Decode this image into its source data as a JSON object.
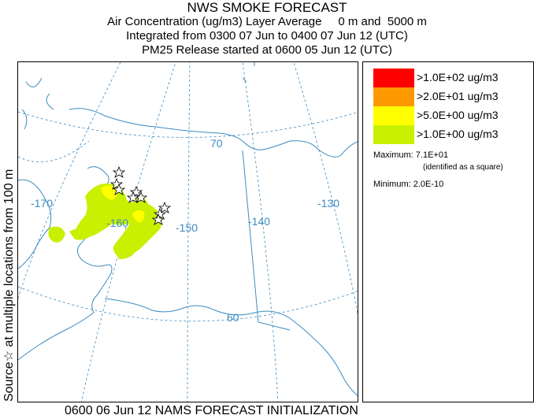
{
  "titles": {
    "main": "NWS SMOKE FORECAST",
    "line1": "Air Concentration (ug/m3) Layer Average     0 m and  5000 m",
    "line2": "Integrated from 0300 07 Jun to 0400 07 Jun 12 (UTC)",
    "line3": "PM25 Release started at 0600 05 Jun 12 (UTC)"
  },
  "side_label": "Source☆ at multiple locations from 100 m",
  "footer": "0600 06 Jun 12 NAMS FORECAST INITIALIZATION",
  "map": {
    "graticule_labels": {
      "lon_170": "-170",
      "lon_160": "-160",
      "lon_150": "-150",
      "lon_140": "-140",
      "lon_130": "-130",
      "lat_70": "70",
      "lat_60": "60"
    },
    "colors": {
      "coast": "#3c8cc0",
      "graticule": "#3c8cc0",
      "conc_1": "#c8f000",
      "conc_5": "#ffff00",
      "conc_20": "#ff9900",
      "conc_100": "#ff0000"
    },
    "sources_symbol": "star"
  },
  "legend": {
    "items": [
      {
        "label": ">1.0E+02 ug/m3",
        "color": "#ff0000"
      },
      {
        "label": ">2.0E+01 ug/m3",
        "color": "#ff9900"
      },
      {
        "label": ">5.0E+00 ug/m3",
        "color": "#ffff00"
      },
      {
        "label": ">1.0E+00 ug/m3",
        "color": "#c8f000"
      }
    ],
    "maximum": "Maximum: 7.1E+01",
    "maximum_note": "(identified as a square)",
    "minimum": "Minimum: 2.0E-10"
  }
}
